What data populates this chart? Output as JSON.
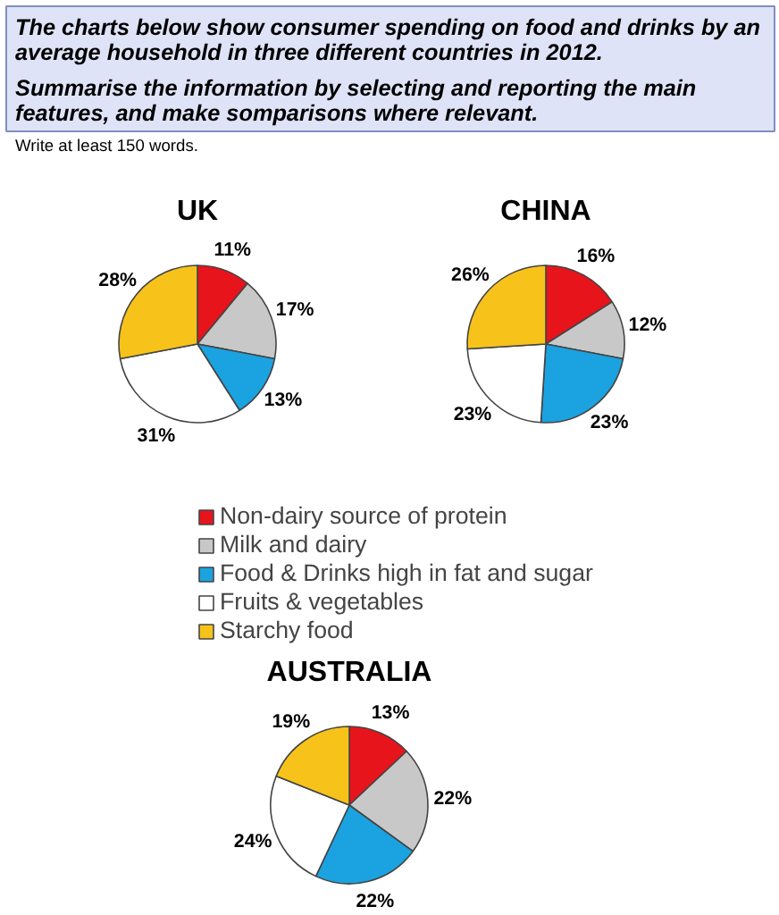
{
  "chart_data": [
    {
      "type": "pie",
      "title": "UK",
      "annotations": [
        "The charts below show consumer spending on food and drinks by an average household in three different countries in 2012.",
        "Summarise the information by selecting and reporting the main features, and make somparisons where relevant.",
        "Write at least 150 words."
      ],
      "categories": [
        "Non-dairy source of protein",
        "Milk and dairy",
        "Food & Drinks high in fat and sugar",
        "Fruits & vegetables",
        "Starchy food"
      ],
      "values": [
        11,
        17,
        13,
        31,
        28
      ],
      "value_labels": [
        "11%",
        "17%",
        "13%",
        "31%",
        "28%"
      ],
      "colors": [
        "#e8141b",
        "#c8c8c8",
        "#1aa3e0",
        "#ffffff",
        "#f7c31b"
      ],
      "legend": "bottom"
    },
    {
      "type": "pie",
      "title": "CHINA",
      "categories": [
        null,
        null,
        null,
        null,
        null
      ],
      "values": [
        16,
        12,
        23,
        23,
        26
      ],
      "value_labels": [
        "16%",
        "12%",
        "23%",
        "23%",
        "26%"
      ],
      "colors": [
        "#e8141b",
        "#c8c8c8",
        "#1aa3e0",
        "#ffffff",
        "#f7c31b"
      ]
    },
    {
      "type": "pie",
      "title": "AUSTRALIA",
      "categories": [
        null,
        null,
        null,
        null,
        null
      ],
      "values": [
        13,
        22,
        22,
        24,
        19
      ],
      "value_labels": [
        "13%",
        "22%",
        "22%",
        "24%",
        "19%"
      ],
      "colors": [
        "#e8141b",
        "#c8c8c8",
        "#1aa3e0",
        "#ffffff",
        "#f7c31b"
      ]
    }
  ]
}
